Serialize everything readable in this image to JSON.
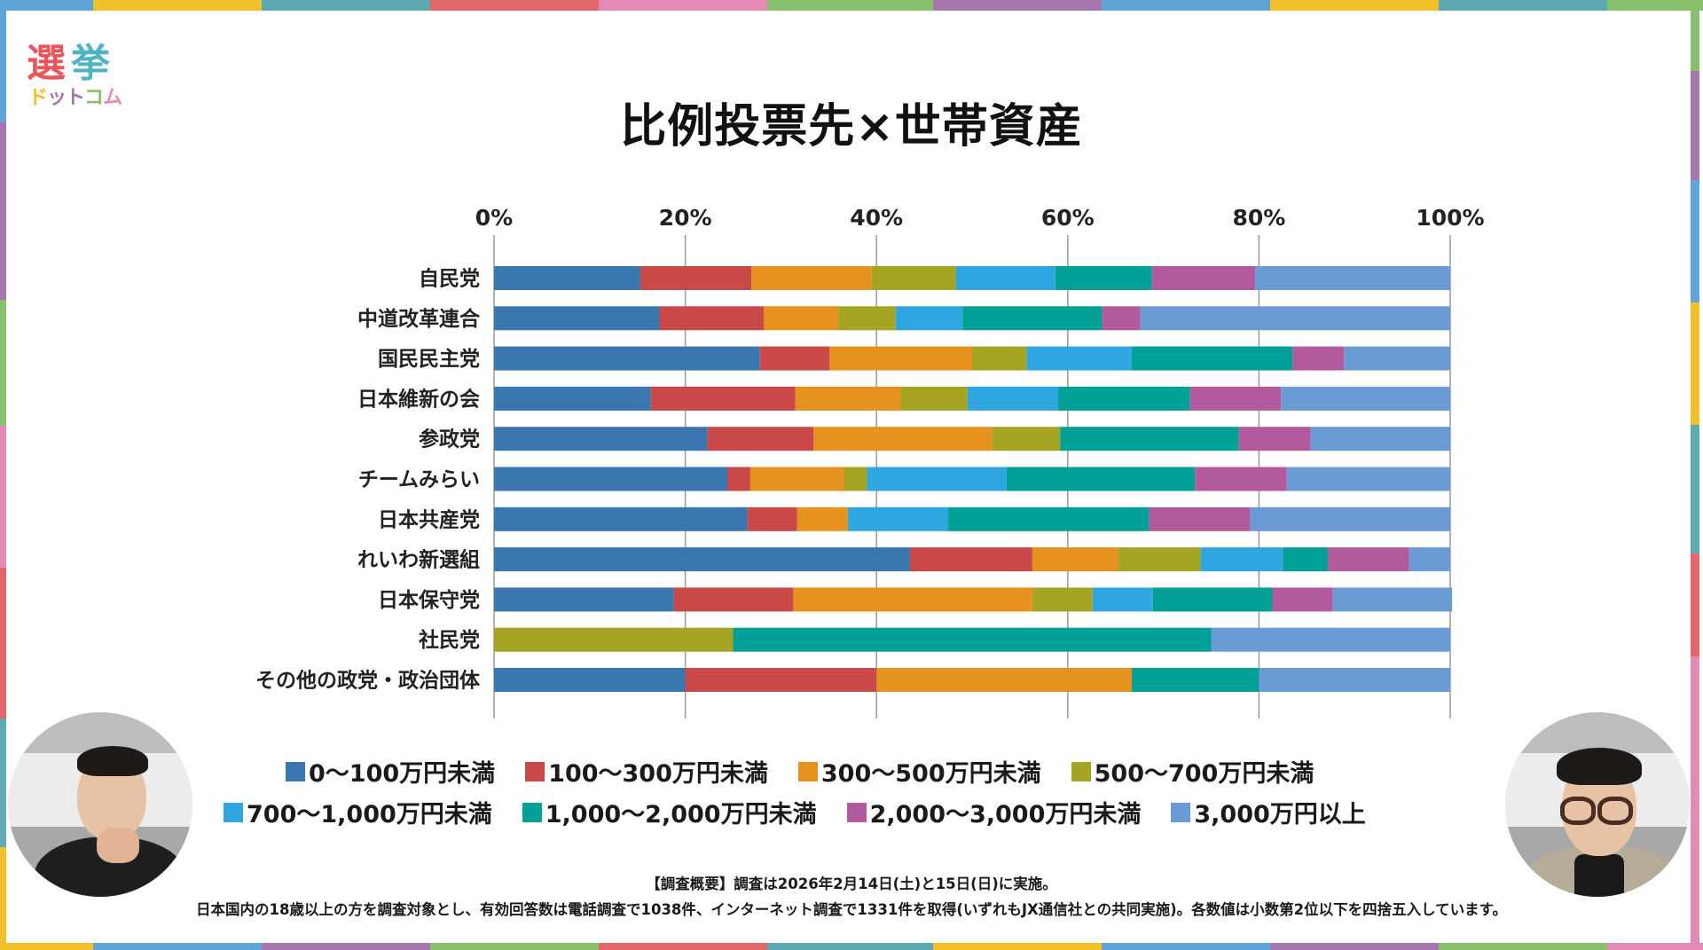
{
  "frame": {
    "top_colors": [
      "#5fa5d8",
      "#f1c02b",
      "#5fa9b5",
      "#e2676a",
      "#e38bb6",
      "#88c06c",
      "#a577ad",
      "#5fa5d8",
      "#f1c02b",
      "#5fa9b5",
      "#88c06c"
    ],
    "bottom_colors": [
      "#f1c02b",
      "#5fa5d8",
      "#a577ad",
      "#88c06c",
      "#e2676a",
      "#5fa9b5",
      "#f1c02b",
      "#5fa5d8",
      "#a577ad",
      "#88c06c",
      "#e38bb6"
    ],
    "left_colors": [
      "#5fa5d8",
      "#a577ad",
      "#88c06c",
      "#e38bb6",
      "#e2676a",
      "#5fa9b5",
      "#f1c02b"
    ],
    "right_colors": [
      "#88c06c",
      "#a577ad",
      "#5fa5d8",
      "#f1c02b",
      "#5fa9b5",
      "#e2676a",
      "#e38bb6"
    ]
  },
  "logo": {
    "kanji_1": "選",
    "kanji_2": "挙",
    "kana": [
      "ド",
      "ッ",
      "ト",
      "コ",
      "ム"
    ],
    "kana_colors": [
      "#f1c02b",
      "#a577ad",
      "#a577ad",
      "#88c06c",
      "#e38bb6"
    ]
  },
  "chart_data": {
    "type": "bar",
    "orientation": "horizontal-stacked-100",
    "title": "比例投票先×世帯資産",
    "xlabel": "",
    "ylabel": "",
    "xlim": [
      0,
      100
    ],
    "grid": true,
    "x_ticks": [
      "0%",
      "20%",
      "40%",
      "60%",
      "80%",
      "100%"
    ],
    "x_tick_values": [
      0,
      20,
      40,
      60,
      80,
      100
    ],
    "legend_position": "bottom",
    "categories": [
      "自民党",
      "中道改革連合",
      "国民民主党",
      "日本維新の会",
      "参政党",
      "チームみらい",
      "日本共産党",
      "れいわ新選組",
      "日本保守党",
      "社民党",
      "その他の政党・政治団体"
    ],
    "series": [
      {
        "name": "0～100万円未満",
        "color": "#3a76b0",
        "values": [
          15.3,
          17.3,
          27.8,
          16.4,
          22.3,
          24.4,
          26.5,
          43.5,
          18.8,
          0,
          20.0
        ]
      },
      {
        "name": "100～300万円未満",
        "color": "#c94848",
        "values": [
          11.6,
          10.9,
          7.3,
          15.1,
          11.1,
          2.4,
          5.2,
          12.8,
          12.5,
          0,
          20.0
        ]
      },
      {
        "name": "300～500万円未満",
        "color": "#e6921e",
        "values": [
          12.6,
          7.8,
          14.9,
          11.0,
          18.7,
          9.8,
          5.3,
          9.0,
          25.0,
          0,
          26.7
        ]
      },
      {
        "name": "500～700万円未満",
        "color": "#a5a523",
        "values": [
          8.8,
          6.0,
          5.7,
          7.0,
          7.1,
          2.4,
          0,
          8.6,
          6.3,
          25.0,
          0
        ]
      },
      {
        "name": "700～1,000万円未満",
        "color": "#2fa6e0",
        "values": [
          10.4,
          7.0,
          11.0,
          9.5,
          0,
          14.6,
          10.5,
          8.6,
          6.3,
          0,
          0
        ]
      },
      {
        "name": "1,000～2,000万円未満",
        "color": "#00a096",
        "values": [
          10.1,
          14.6,
          16.8,
          13.8,
          18.7,
          19.7,
          21.0,
          4.7,
          12.5,
          50.0,
          13.3
        ]
      },
      {
        "name": "2,000～3,000万円未満",
        "color": "#b35a9e",
        "values": [
          10.8,
          4.0,
          5.4,
          9.5,
          7.5,
          9.6,
          10.6,
          8.5,
          6.3,
          0,
          0
        ]
      },
      {
        "name": "3,000万円以上",
        "color": "#6a9bd4",
        "values": [
          20.4,
          32.4,
          11.1,
          17.7,
          14.6,
          17.1,
          20.9,
          4.3,
          12.5,
          25.0,
          20.0
        ]
      }
    ]
  },
  "footnote": {
    "line1": "【調査概要】調査は2026年2月14日(土)と15日(日)に実施。",
    "line2": "日本国内の18歳以上の方を調査対象とし、有効回答数は電話調査で1038件、インターネット調査で1331件を取得(いずれもJX通信社との共同実施)。各数値は小数第2位以下を四捨五入しています。"
  }
}
